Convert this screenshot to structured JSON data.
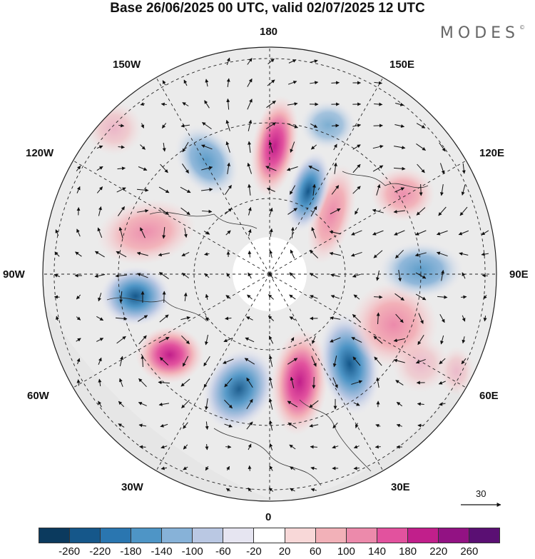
{
  "title": "Base 26/06/2025 00 UTC, valid 02/07/2025 12 UTC",
  "brand": {
    "name": "MODES",
    "mark": "©"
  },
  "longitude_labels": [
    {
      "key": "180",
      "text": "180"
    },
    {
      "key": "150W",
      "text": "150W"
    },
    {
      "key": "150E",
      "text": "150E"
    },
    {
      "key": "120W",
      "text": "120W"
    },
    {
      "key": "120E",
      "text": "120E"
    },
    {
      "key": "90W",
      "text": "90W"
    },
    {
      "key": "90E",
      "text": "90E"
    },
    {
      "key": "60W",
      "text": "60W"
    },
    {
      "key": "60E",
      "text": "60E"
    },
    {
      "key": "30W",
      "text": "30W"
    },
    {
      "key": "30E",
      "text": "30E"
    },
    {
      "key": "0",
      "text": "0"
    }
  ],
  "reference_vector": {
    "value": "30"
  },
  "colorbar": {
    "colors": [
      "#0b3a5e",
      "#15578a",
      "#2a76b0",
      "#4e95c6",
      "#87b2d8",
      "#bac8e3",
      "#e6e5f1",
      "#ffffff",
      "#f8d8d8",
      "#f2b1b8",
      "#ec8aab",
      "#e2529e",
      "#c11f8b",
      "#921283",
      "#5a0f73"
    ],
    "ticks": [
      "-260",
      "-220",
      "-180",
      "-140",
      "-100",
      "-60",
      "-20",
      "20",
      "60",
      "100",
      "140",
      "180",
      "220",
      "260"
    ]
  },
  "colors": {
    "background": "#ffffff",
    "land": "#ebebeb",
    "graticule": "#222222"
  }
}
